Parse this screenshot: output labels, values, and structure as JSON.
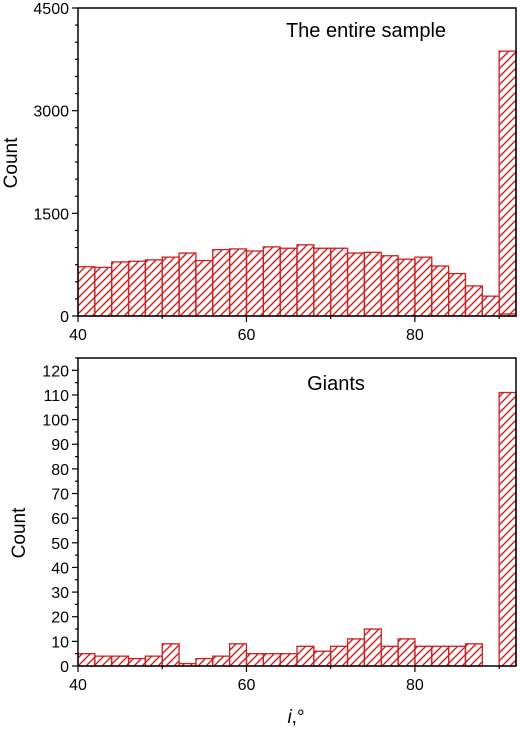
{
  "colors": {
    "bar": "#cc1f1f",
    "axis": "#000000"
  },
  "hatch": "diagonal",
  "chart_data": [
    {
      "type": "bar",
      "title": "The entire sample",
      "xlabel": "",
      "ylabel": "Count",
      "xlim": [
        40,
        92
      ],
      "ylim": [
        0,
        4500
      ],
      "xticks": [
        40,
        60,
        80
      ],
      "yticks": [
        0,
        1500,
        3000,
        4500
      ],
      "bin_width": 2,
      "x": [
        40,
        42,
        44,
        46,
        48,
        50,
        52,
        54,
        56,
        58,
        60,
        62,
        64,
        66,
        68,
        70,
        72,
        74,
        76,
        78,
        80,
        82,
        84,
        86,
        88,
        90
      ],
      "values": [
        720,
        710,
        790,
        800,
        820,
        860,
        920,
        810,
        970,
        980,
        950,
        1010,
        990,
        1040,
        990,
        990,
        920,
        930,
        880,
        830,
        860,
        730,
        620,
        440,
        290,
        30
      ],
      "extra_bar": {
        "x": 90,
        "value": 3870
      }
    },
    {
      "type": "bar",
      "title": "Giants",
      "xlabel": "i,°",
      "ylabel": "Count",
      "xlim": [
        40,
        92
      ],
      "ylim": [
        0,
        125
      ],
      "xticks": [
        40,
        60,
        80
      ],
      "yticks": [
        0,
        10,
        20,
        30,
        40,
        50,
        60,
        70,
        80,
        90,
        100,
        110,
        120
      ],
      "bin_width": 2,
      "x": [
        40,
        42,
        44,
        46,
        48,
        50,
        52,
        54,
        56,
        58,
        60,
        62,
        64,
        66,
        68,
        70,
        72,
        74,
        76,
        78,
        80,
        82,
        84,
        86,
        88
      ],
      "values": [
        5,
        4,
        4,
        3,
        4,
        9,
        1,
        3,
        4,
        9,
        5,
        5,
        5,
        8,
        6,
        8,
        11,
        15,
        8,
        11,
        8,
        8,
        8,
        9,
        0
      ],
      "extra_bar": {
        "x": 90,
        "value": 111
      }
    }
  ]
}
